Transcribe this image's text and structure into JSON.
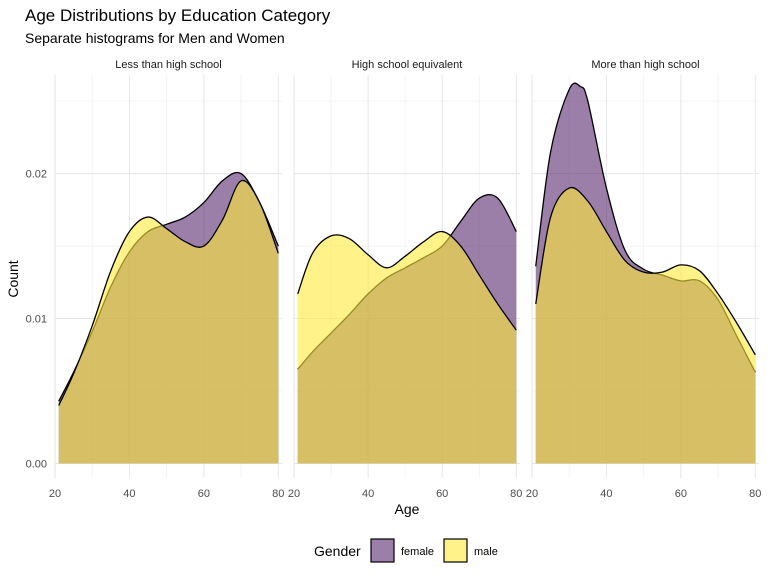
{
  "chart_data": {
    "type": "area",
    "title": "Age Distributions by Education Category",
    "subtitle": "Separate histograms for Men and Women",
    "xlabel": "Age",
    "ylabel": "Count",
    "xlim": [
      20,
      81
    ],
    "ylim": [
      -0.001,
      0.0268
    ],
    "x_ticks": [
      20,
      40,
      60,
      80
    ],
    "x_tick_labels": [
      "20",
      "40",
      "60",
      "80"
    ],
    "y_ticks": [
      0.0,
      0.01,
      0.02
    ],
    "y_tick_labels": [
      "0.00",
      "0.01",
      "0.02"
    ],
    "grid": true,
    "legend": {
      "title": "Gender",
      "position": "bottom",
      "entries": [
        "female",
        "male"
      ]
    },
    "colors": {
      "female": "#5a2a6e",
      "male": "#ffe93a",
      "outline": "#000000"
    },
    "facets": [
      {
        "label": "Less than high school",
        "series": [
          {
            "name": "female",
            "x": [
              21,
              25,
              30,
              35,
              40,
              45,
              50,
              55,
              60,
              65,
              70,
              75,
              80
            ],
            "values": [
              0.0043,
              0.0063,
              0.0091,
              0.0122,
              0.0146,
              0.016,
              0.0165,
              0.017,
              0.018,
              0.0195,
              0.02,
              0.018,
              0.015
            ]
          },
          {
            "name": "male",
            "x": [
              21,
              25,
              30,
              35,
              40,
              45,
              50,
              55,
              60,
              65,
              70,
              75,
              80
            ],
            "values": [
              0.004,
              0.0062,
              0.0095,
              0.0133,
              0.016,
              0.017,
              0.0162,
              0.0153,
              0.015,
              0.0168,
              0.0195,
              0.018,
              0.0145
            ]
          }
        ]
      },
      {
        "label": "High school equivalent",
        "series": [
          {
            "name": "female",
            "x": [
              21,
              25,
              30,
              35,
              40,
              45,
              50,
              55,
              60,
              65,
              70,
              75,
              80
            ],
            "values": [
              0.0065,
              0.0077,
              0.009,
              0.0103,
              0.0117,
              0.0128,
              0.0135,
              0.0142,
              0.015,
              0.0167,
              0.0183,
              0.0183,
              0.016
            ]
          },
          {
            "name": "male",
            "x": [
              21,
              25,
              30,
              35,
              40,
              45,
              50,
              55,
              60,
              65,
              70,
              75,
              80
            ],
            "values": [
              0.0117,
              0.0145,
              0.0157,
              0.0155,
              0.0144,
              0.0135,
              0.0143,
              0.0153,
              0.016,
              0.015,
              0.013,
              0.011,
              0.0092
            ]
          }
        ]
      },
      {
        "label": "More than high school",
        "series": [
          {
            "name": "female",
            "x": [
              21,
              25,
              30,
              33,
              35,
              40,
              45,
              50,
              55,
              60,
              65,
              70,
              75,
              80
            ],
            "values": [
              0.0136,
              0.0215,
              0.0258,
              0.026,
              0.025,
              0.019,
              0.0147,
              0.0134,
              0.013,
              0.0126,
              0.0126,
              0.0113,
              0.0088,
              0.0063
            ]
          },
          {
            "name": "male",
            "x": [
              21,
              25,
              30,
              35,
              40,
              45,
              50,
              55,
              60,
              65,
              70,
              75,
              80
            ],
            "values": [
              0.011,
              0.017,
              0.019,
              0.0181,
              0.016,
              0.014,
              0.0132,
              0.0132,
              0.0137,
              0.0133,
              0.0117,
              0.0097,
              0.0075
            ]
          }
        ]
      }
    ]
  }
}
